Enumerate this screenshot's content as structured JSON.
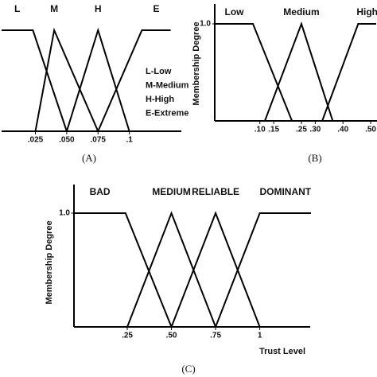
{
  "chart_data": [
    {
      "type": "line",
      "caption": "(A)",
      "legend_text": [
        "L-Low",
        "M-Medium",
        "H-High",
        "E-Extreme"
      ],
      "xlim": [
        -0.002,
        0.133
      ],
      "ylim": [
        0,
        1
      ],
      "xticks": [
        {
          "value": 0.025,
          "label": ".025"
        },
        {
          "value": 0.05,
          "label": ".050"
        },
        {
          "value": 0.075,
          "label": ".075"
        },
        {
          "value": 0.1,
          "label": ".1"
        }
      ],
      "yticks": [],
      "series": [
        {
          "name": "L",
          "color": "#000000",
          "x": [
            -0.002,
            0.023,
            0.05
          ],
          "values": [
            1,
            1,
            0
          ]
        },
        {
          "name": "M",
          "color": "#000000",
          "x": [
            0.025,
            0.04,
            0.075
          ],
          "values": [
            0,
            1,
            0
          ]
        },
        {
          "name": "H",
          "color": "#000000",
          "x": [
            0.05,
            0.075,
            0.1
          ],
          "values": [
            0,
            1,
            0
          ]
        },
        {
          "name": "E",
          "color": "#000000",
          "x": [
            0.075,
            0.11,
            0.133
          ],
          "values": [
            0,
            1,
            1
          ]
        }
      ]
    },
    {
      "type": "line",
      "caption": "(B)",
      "y_label": "Membership Degree",
      "xlim": [
        -0.06,
        0.52
      ],
      "ylim": [
        0,
        1
      ],
      "xticks": [
        {
          "value": 0.1,
          "label": ".10"
        },
        {
          "value": 0.15,
          "label": ".15"
        },
        {
          "value": 0.25,
          "label": ".25"
        },
        {
          "value": 0.3,
          "label": ".30"
        },
        {
          "value": 0.4,
          "label": ".40"
        },
        {
          "value": 0.5,
          "label": ".50"
        }
      ],
      "yticks": [
        {
          "value": 1,
          "label": "1.0"
        }
      ],
      "series": [
        {
          "name": "Low",
          "color": "#000000",
          "x": [
            -0.06,
            0.075,
            0.216
          ],
          "values": [
            1,
            1,
            0
          ]
        },
        {
          "name": "Medium",
          "color": "#000000",
          "x": [
            0.118,
            0.25,
            0.363
          ],
          "values": [
            0,
            1,
            0
          ]
        },
        {
          "name": "High",
          "color": "#000000",
          "x": [
            0.325,
            0.455,
            0.52
          ],
          "values": [
            0,
            1,
            1
          ]
        }
      ]
    },
    {
      "type": "line",
      "caption": "(C)",
      "y_label": "Membership Degree",
      "x_label": "Trust Level",
      "xlim": [
        -0.05,
        1.29
      ],
      "ylim": [
        0,
        1
      ],
      "xticks": [
        {
          "value": 0.25,
          "label": ".25"
        },
        {
          "value": 0.5,
          "label": ".50"
        },
        {
          "value": 0.75,
          "label": ".75"
        },
        1
      ],
      "yticks": [
        {
          "value": 1,
          "label": "1.0"
        }
      ],
      "series": [
        {
          "name": "BAD",
          "color": "#000000",
          "x": [
            -0.05,
            0.24,
            0.5
          ],
          "values": [
            1,
            1,
            0
          ]
        },
        {
          "name": "MEDIUM",
          "color": "#000000",
          "x": [
            0.25,
            0.5,
            0.75
          ],
          "values": [
            0,
            1,
            0
          ]
        },
        {
          "name": "RELIABLE",
          "color": "#000000",
          "x": [
            0.5,
            0.75,
            1
          ],
          "values": [
            0,
            1,
            0
          ]
        },
        {
          "name": "DOMINANT",
          "color": "#000000",
          "x": [
            0.75,
            1,
            1.29
          ],
          "values": [
            0,
            1,
            1
          ]
        }
      ]
    }
  ]
}
